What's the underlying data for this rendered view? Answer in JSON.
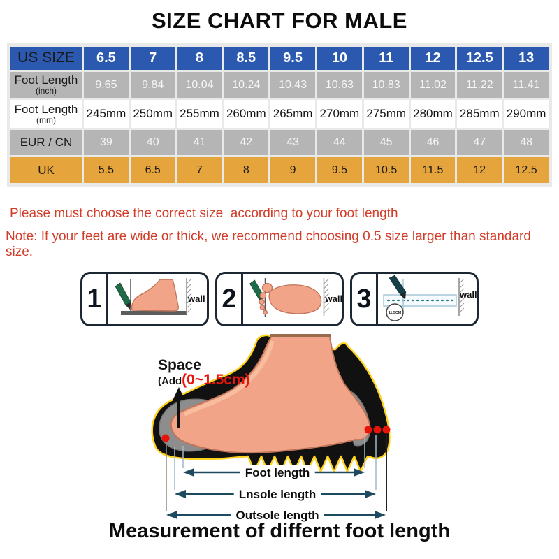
{
  "title": "SIZE CHART FOR MALE",
  "size_table": {
    "header_label": "US SIZE",
    "header_values": [
      "6.5",
      "7",
      "8",
      "8.5",
      "9.5",
      "10",
      "11",
      "12",
      "12.5",
      "13"
    ],
    "rows": [
      {
        "label": "Foot Length",
        "sublabel": "(inch)",
        "style": "gray",
        "values": [
          "9.65",
          "9.84",
          "10.04",
          "10.24",
          "10.43",
          "10.63",
          "10.83",
          "11.02",
          "11.22",
          "11.41"
        ]
      },
      {
        "label": "Foot Length",
        "sublabel": "(mm)",
        "style": "white",
        "values": [
          "245mm",
          "250mm",
          "255mm",
          "260mm",
          "265mm",
          "270mm",
          "275mm",
          "280mm",
          "285mm",
          "290mm"
        ]
      },
      {
        "label": "EUR / CN",
        "sublabel": "",
        "style": "gray",
        "values": [
          "39",
          "40",
          "41",
          "42",
          "43",
          "44",
          "45",
          "46",
          "47",
          "48"
        ]
      },
      {
        "label": "UK",
        "sublabel": "",
        "style": "orange",
        "values": [
          "5.5",
          "6.5",
          "7",
          "8",
          "9",
          "9.5",
          "10.5",
          "11.5",
          "12",
          "12.5"
        ]
      }
    ]
  },
  "notes": {
    "line1": "Please must choose the correct size  according to your foot length",
    "line2": "Note: If your feet are wide or thick, we recommend choosing 0.5 size larger than standard size."
  },
  "panels": {
    "wall_label": "wall",
    "circle_label": "11.5CM",
    "items": [
      {
        "number": "1"
      },
      {
        "number": "2"
      },
      {
        "number": "3"
      }
    ]
  },
  "diagram": {
    "space_label": "Space",
    "add_label": "(Add",
    "range_label": "(0~1.5cm)",
    "measurements": [
      "Foot length",
      "Lnsole length",
      "Outsole length"
    ],
    "caption": "Measurement of differnt foot length"
  },
  "colors": {
    "header_blue": "#2b59b0",
    "row_gray": "#b5b5b5",
    "uk_orange": "#e6a53c",
    "note_red": "#d23c28",
    "accent_red": "#e81309",
    "arrow_teal": "#1e4a60",
    "foot_peach": "#f2a488",
    "sole_black": "#111111",
    "outline_yellow": "#ffd21e"
  }
}
